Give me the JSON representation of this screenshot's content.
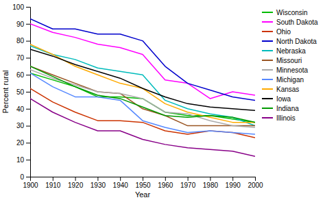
{
  "chart_data": {
    "type": "line",
    "xlabel": "Year",
    "ylabel": "Percent rural",
    "x": [
      1900,
      1910,
      1920,
      1930,
      1940,
      1950,
      1960,
      1970,
      1980,
      1990,
      2000
    ],
    "series": [
      {
        "name": "Wisconsin",
        "color": "#00bb00",
        "values": [
          61,
          57,
          53,
          47,
          47,
          46,
          38,
          36,
          36,
          34,
          32
        ]
      },
      {
        "name": "South Dakota",
        "color": "#ff00ff",
        "values": [
          90,
          85,
          82,
          78,
          76,
          72,
          57,
          55,
          46,
          50,
          48
        ]
      },
      {
        "name": "Ohio",
        "color": "#cc3300",
        "values": [
          52,
          44,
          38,
          33,
          33,
          32,
          27,
          25,
          27,
          26,
          23
        ]
      },
      {
        "name": "North Dakota",
        "color": "#0000cc",
        "values": [
          93,
          87,
          87,
          84,
          84,
          80,
          65,
          55,
          51,
          47,
          45
        ]
      },
      {
        "name": "Nebraska",
        "color": "#00bbbb",
        "values": [
          77,
          72,
          69,
          64,
          62,
          60,
          45,
          40,
          37,
          35,
          30
        ]
      },
      {
        "name": "Missouri",
        "color": "#995522",
        "values": [
          65,
          60,
          55,
          50,
          49,
          40,
          36,
          30,
          30,
          30,
          30
        ]
      },
      {
        "name": "Minnesota",
        "color": "#aaaaaa",
        "values": [
          63,
          58,
          54,
          50,
          49,
          46,
          38,
          37,
          33,
          30,
          29
        ]
      },
      {
        "name": "Michigan",
        "color": "#5588ff",
        "values": [
          61,
          53,
          47,
          47,
          45,
          33,
          29,
          26,
          27,
          26,
          25
        ]
      },
      {
        "name": "Kansas",
        "color": "#ffaa00",
        "values": [
          78,
          72,
          65,
          60,
          55,
          52,
          43,
          38,
          35,
          32,
          32
        ]
      },
      {
        "name": "Iowa",
        "color": "#000000",
        "values": [
          75,
          71,
          66,
          62,
          58,
          52,
          47,
          43,
          41,
          40,
          39
        ]
      },
      {
        "name": "Indiana",
        "color": "#009900",
        "values": [
          65,
          59,
          53,
          48,
          46,
          41,
          36,
          35,
          36,
          35,
          32
        ]
      },
      {
        "name": "Illinois",
        "color": "#880088",
        "values": [
          46,
          38,
          32,
          27,
          27,
          22,
          19,
          17,
          16,
          15,
          12
        ]
      }
    ],
    "xlim": [
      1900,
      2000
    ],
    "ylim": [
      0,
      100
    ],
    "xticks": [
      1900,
      1910,
      1920,
      1930,
      1940,
      1950,
      1960,
      1970,
      1980,
      1990,
      2000
    ],
    "yticks": [
      0,
      10,
      20,
      30,
      40,
      50,
      60,
      70,
      80,
      90,
      100
    ],
    "grid": false,
    "legend": "right"
  }
}
